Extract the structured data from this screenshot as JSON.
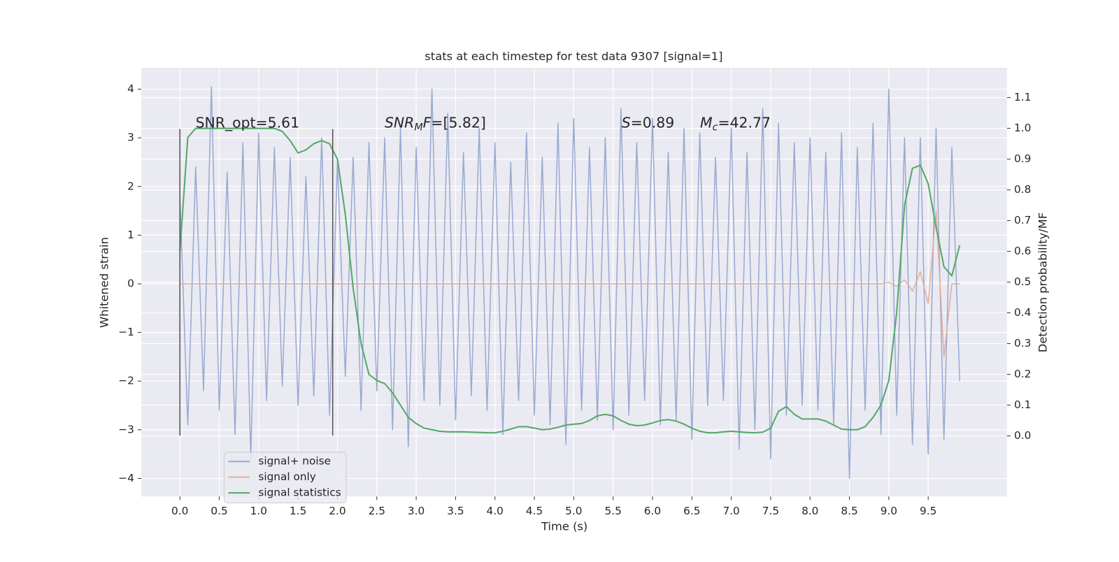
{
  "chart_data": {
    "type": "line",
    "title": "stats at each timestep for test data 9307 [signal=1]",
    "x_label": "Time (s)",
    "y_label": "Whitened strain",
    "y2_label": "Detection probability/MF",
    "x": [
      0,
      0.1,
      0.2,
      0.3,
      0.4,
      0.5,
      0.6,
      0.7,
      0.8,
      0.9,
      1,
      1.1,
      1.2,
      1.3,
      1.4,
      1.5,
      1.6,
      1.7,
      1.8,
      1.9,
      2,
      2.1,
      2.2,
      2.3,
      2.4,
      2.5,
      2.6,
      2.7,
      2.8,
      2.9,
      3,
      3.1,
      3.2,
      3.3,
      3.4,
      3.5,
      3.6,
      3.7,
      3.8,
      3.9,
      4,
      4.1,
      4.2,
      4.3,
      4.4,
      4.5,
      4.6,
      4.7,
      4.8,
      4.9,
      5,
      5.1,
      5.2,
      5.3,
      5.4,
      5.5,
      5.6,
      5.7,
      5.8,
      5.9,
      6,
      6.1,
      6.2,
      6.3,
      6.4,
      6.5,
      6.6,
      6.7,
      6.8,
      6.9,
      7,
      7.1,
      7.2,
      7.3,
      7.4,
      7.5,
      7.6,
      7.7,
      7.8,
      7.9,
      8,
      8.1,
      8.2,
      8.3,
      8.4,
      8.5,
      8.6,
      8.7,
      8.8,
      8.9,
      9,
      9.1,
      9.2,
      9.3,
      9.4,
      9.5,
      9.6,
      9.7,
      9.8,
      9.9
    ],
    "series": [
      {
        "name": "signal+ noise",
        "color": "#9aaad2",
        "axis": "y",
        "values": [
          1.8,
          -2.9,
          2.4,
          -2.2,
          4.05,
          -2.6,
          2.3,
          -3.1,
          2.9,
          -3.6,
          3.1,
          -2.4,
          2.8,
          -2.1,
          2.6,
          -2.5,
          2.2,
          -2.3,
          3.0,
          -2.7,
          2.5,
          -1.9,
          2.6,
          -2.6,
          2.9,
          -2.2,
          3.0,
          -3.0,
          3.2,
          -3.35,
          2.8,
          -2.4,
          4.0,
          -2.5,
          3.5,
          -2.8,
          2.7,
          -2.3,
          3.2,
          -2.6,
          2.9,
          -3.1,
          2.5,
          -2.4,
          3.1,
          -2.7,
          2.6,
          -2.9,
          3.3,
          -3.3,
          3.4,
          -2.6,
          2.8,
          -2.8,
          3.0,
          -3.0,
          3.6,
          -2.7,
          2.9,
          -2.4,
          3.4,
          -2.9,
          2.7,
          -2.8,
          3.2,
          -3.2,
          3.1,
          -2.5,
          2.6,
          -2.4,
          3.2,
          -3.4,
          2.7,
          -3.0,
          3.6,
          -3.6,
          3.3,
          -2.7,
          2.9,
          -2.5,
          3.0,
          -2.6,
          2.7,
          -2.9,
          3.1,
          -4.0,
          2.8,
          -2.6,
          3.3,
          -3.1,
          4.0,
          -2.7,
          3.0,
          -3.3,
          3.0,
          -3.5,
          3.2,
          -3.2,
          2.8,
          -2.0
        ]
      },
      {
        "name": "signal only",
        "color": "#e3ad99",
        "axis": "y",
        "values": [
          0,
          0,
          0,
          0,
          0,
          0,
          0,
          0,
          0,
          0,
          0,
          0,
          0,
          0,
          0,
          0,
          0,
          0,
          0,
          0,
          0,
          0,
          0,
          0,
          0,
          0,
          0,
          0,
          0,
          0,
          0,
          0,
          0,
          0,
          0,
          0,
          0,
          0,
          0,
          0,
          0,
          0,
          0,
          0,
          0,
          0,
          0,
          0,
          0,
          0,
          0,
          0,
          0,
          0,
          0,
          0,
          0,
          0,
          0,
          0,
          0,
          0,
          0,
          0,
          0,
          0,
          0,
          0,
          0,
          0,
          0,
          0,
          0,
          0,
          0,
          0,
          0,
          0,
          0,
          0,
          0,
          0,
          0,
          0,
          0,
          0,
          0,
          0,
          0,
          0,
          0.03,
          -0.05,
          0.08,
          -0.15,
          0.25,
          -0.4,
          1.5,
          -1.5,
          0,
          0
        ]
      },
      {
        "name": "signal statistics",
        "color": "#55a868",
        "axis": "y2",
        "values": [
          0.6,
          0.97,
          1.0,
          1.0,
          1.0,
          1.0,
          1.0,
          1.0,
          1.0,
          1.0,
          1.0,
          1.0,
          1.0,
          0.99,
          0.96,
          0.92,
          0.93,
          0.95,
          0.96,
          0.95,
          0.9,
          0.72,
          0.48,
          0.3,
          0.2,
          0.18,
          0.17,
          0.14,
          0.1,
          0.06,
          0.04,
          0.025,
          0.02,
          0.015,
          0.013,
          0.013,
          0.013,
          0.012,
          0.011,
          0.01,
          0.01,
          0.015,
          0.022,
          0.03,
          0.03,
          0.025,
          0.02,
          0.022,
          0.028,
          0.035,
          0.038,
          0.04,
          0.05,
          0.065,
          0.07,
          0.065,
          0.05,
          0.038,
          0.033,
          0.035,
          0.042,
          0.05,
          0.053,
          0.048,
          0.038,
          0.025,
          0.015,
          0.01,
          0.01,
          0.013,
          0.015,
          0.013,
          0.011,
          0.01,
          0.012,
          0.025,
          0.08,
          0.095,
          0.07,
          0.055,
          0.055,
          0.055,
          0.048,
          0.035,
          0.022,
          0.02,
          0.02,
          0.03,
          0.06,
          0.1,
          0.18,
          0.4,
          0.75,
          0.87,
          0.88,
          0.82,
          0.68,
          0.55,
          0.52,
          0.62
        ]
      }
    ],
    "vlines": {
      "x": [
        0,
        1.94
      ],
      "ymin": -3.12,
      "ymax": 3.18,
      "color": "#555555"
    },
    "annotations": [
      [
        {
          "text": "SNR_opt=5.61"
        }
      ],
      [
        {
          "text": "SNR",
          "style": "italic"
        },
        {
          "text": "M",
          "style": "sub"
        },
        {
          "text": "F",
          "style": "italic"
        },
        {
          "text": "=[5.82]"
        }
      ],
      [
        {
          "text": "S",
          "style": "italic"
        },
        {
          "text": "=0.89"
        }
      ],
      [
        {
          "text": "M",
          "style": "italic"
        },
        {
          "text": "c",
          "style": "sub"
        },
        {
          "text": "=42.77"
        }
      ]
    ],
    "xlim": [
      -0.49,
      10.5
    ],
    "ylim": [
      -4.37,
      4.44
    ],
    "y2lim": [
      -0.197,
      1.197
    ],
    "xticks": [
      {
        "value": 0,
        "label": "0.0"
      },
      0.5,
      {
        "value": 1,
        "label": "1.0"
      },
      1.5,
      {
        "value": 2,
        "label": "2.0"
      },
      2.5,
      {
        "value": 3,
        "label": "3.0"
      },
      3.5,
      {
        "value": 4,
        "label": "4.0"
      },
      4.5,
      {
        "value": 5,
        "label": "5.0"
      },
      5.5,
      {
        "value": 6,
        "label": "6.0"
      },
      6.5,
      {
        "value": 7,
        "label": "7.0"
      },
      7.5,
      {
        "value": 8,
        "label": "8.0"
      },
      8.5,
      {
        "value": 9,
        "label": "9.0"
      },
      9.5
    ],
    "yticks": [
      {
        "value": 4,
        "label": "4"
      },
      {
        "value": 3,
        "label": "3"
      },
      {
        "value": 2,
        "label": "2"
      },
      {
        "value": 1,
        "label": "1"
      },
      {
        "value": 0,
        "label": "0"
      },
      {
        "value": -1,
        "label": "−1"
      },
      {
        "value": -2,
        "label": "−2"
      },
      {
        "value": -3,
        "label": "−3"
      },
      {
        "value": -4,
        "label": "−4"
      }
    ],
    "y2ticks": [
      {
        "value": 0,
        "label": "0.0"
      },
      0.1,
      0.2,
      0.3,
      0.4,
      0.5,
      0.6,
      0.7,
      0.8,
      0.9,
      {
        "value": 1,
        "label": "1.0"
      },
      1.1
    ],
    "grid": true,
    "legend": "lower left"
  }
}
